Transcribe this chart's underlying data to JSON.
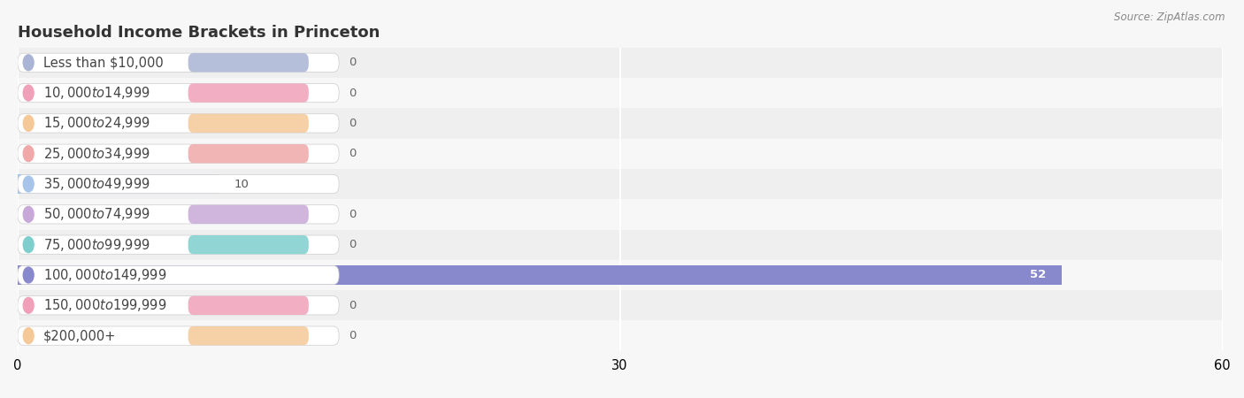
{
  "title": "Household Income Brackets in Princeton",
  "source": "Source: ZipAtlas.com",
  "categories": [
    "Less than $10,000",
    "$10,000 to $14,999",
    "$15,000 to $24,999",
    "$25,000 to $34,999",
    "$35,000 to $49,999",
    "$50,000 to $74,999",
    "$75,000 to $99,999",
    "$100,000 to $149,999",
    "$150,000 to $199,999",
    "$200,000+"
  ],
  "values": [
    0,
    0,
    0,
    0,
    10,
    0,
    0,
    52,
    0,
    0
  ],
  "bar_colors": [
    "#aab4d4",
    "#f0a0b8",
    "#f5c898",
    "#f0a8a8",
    "#a8c4e8",
    "#c8a8d8",
    "#7ecece",
    "#8888cc",
    "#f0a0b8",
    "#f5c898"
  ],
  "bg_color": "#f7f7f7",
  "row_bg_even": "#efefef",
  "row_bg_odd": "#f7f7f7",
  "xlim": [
    0,
    60
  ],
  "xticks": [
    0,
    30,
    60
  ],
  "title_fontsize": 13,
  "label_fontsize": 10.5,
  "value_fontsize": 9.5
}
